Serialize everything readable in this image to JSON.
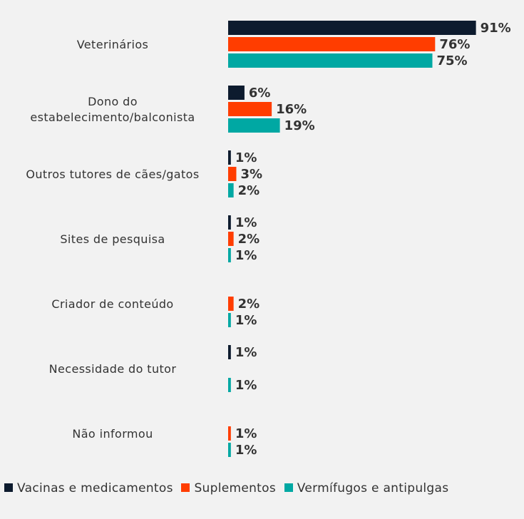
{
  "chart_data": {
    "type": "bar",
    "orientation": "horizontal",
    "categories": [
      [
        "Veterinários"
      ],
      [
        "Dono do",
        "estabelecimento/balconista"
      ],
      [
        "Outros tutores de cães/gatos"
      ],
      [
        "Sites de pesquisa"
      ],
      [
        "Criador de conteúdo"
      ],
      [
        "Necessidade do tutor"
      ],
      [
        "Não informou"
      ]
    ],
    "series": [
      {
        "name": "Vacinas e medicamentos",
        "color": "#0d1b2e",
        "values": [
          91,
          6,
          1,
          1,
          null,
          1,
          null
        ],
        "labels": [
          "91%",
          "6%",
          "1%",
          "1%",
          null,
          "1%",
          null
        ]
      },
      {
        "name": "Suplementos",
        "color": "#ff3d00",
        "values": [
          76,
          16,
          3,
          2,
          2,
          null,
          1
        ],
        "labels": [
          "76%",
          "16%",
          "3%",
          "2%",
          "2%",
          null,
          "1%"
        ]
      },
      {
        "name": "Vermífugos e antipulgas",
        "color": "#00a8a3",
        "values": [
          75,
          19,
          2,
          1,
          1,
          1,
          1
        ],
        "labels": [
          "75%",
          "19%",
          "2%",
          "1%",
          "1%",
          "1%",
          "1%"
        ]
      }
    ],
    "xlim": [
      0,
      100
    ],
    "legend_position": "bottom",
    "grid": false,
    "title": "",
    "xlabel": "",
    "ylabel": ""
  }
}
